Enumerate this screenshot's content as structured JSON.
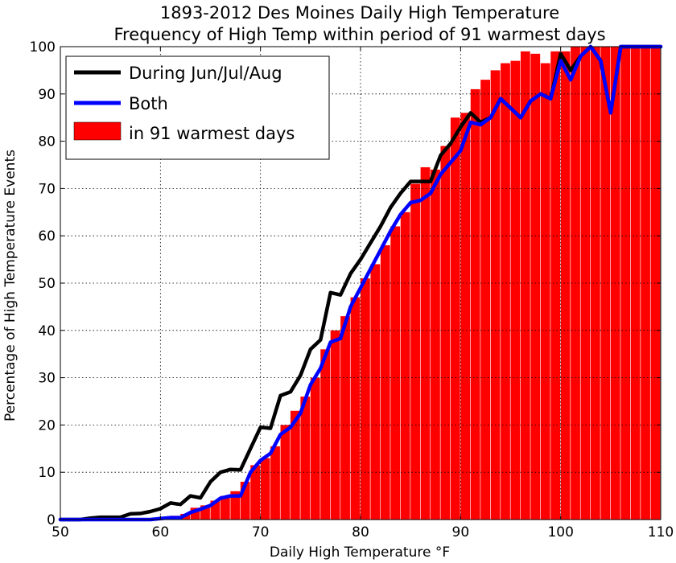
{
  "chart_data": {
    "type": "bar",
    "title": "1893-2012 Des Moines Daily High Temperature",
    "subtitle": "Frequency of High Temp within period of 91 warmest days",
    "xlabel": "Daily High Temperature °F",
    "ylabel": "Percentage of High Temperature Events",
    "xlim": [
      50,
      110
    ],
    "ylim": [
      0,
      100
    ],
    "xticks": [
      50,
      60,
      70,
      80,
      90,
      100,
      110
    ],
    "yticks": [
      0,
      10,
      20,
      30,
      40,
      50,
      60,
      70,
      80,
      90,
      100
    ],
    "grid": true,
    "legend_position": "top-left",
    "legend": [
      {
        "label": "During Jun/Jul/Aug",
        "kind": "line",
        "color": "#000000"
      },
      {
        "label": "Both",
        "kind": "line",
        "color": "#0000ff"
      },
      {
        "label": "in 91 warmest days",
        "kind": "bar",
        "color": "#ff0000"
      }
    ],
    "bars": {
      "name": "in 91 warmest days",
      "color": "#ff0000",
      "x": [
        50,
        51,
        52,
        53,
        54,
        55,
        56,
        57,
        58,
        59,
        60,
        61,
        62,
        63,
        64,
        65,
        66,
        67,
        68,
        69,
        70,
        71,
        72,
        73,
        74,
        75,
        76,
        77,
        78,
        79,
        80,
        81,
        82,
        83,
        84,
        85,
        86,
        87,
        88,
        89,
        90,
        91,
        92,
        93,
        94,
        95,
        96,
        97,
        98,
        99,
        100,
        101,
        102,
        103,
        104,
        105,
        106,
        107,
        108,
        109
      ],
      "values": [
        0,
        0,
        0,
        0,
        0,
        0,
        0,
        0,
        0,
        0,
        0.5,
        0.8,
        1.2,
        2.5,
        3,
        4,
        5,
        6,
        8,
        11.5,
        13,
        15.5,
        20,
        23,
        26,
        30,
        36,
        40,
        43,
        47,
        51,
        54,
        58,
        62,
        65,
        71,
        74.5,
        74,
        79,
        85,
        86,
        91,
        93,
        95,
        96.5,
        97,
        99,
        98.5,
        96.5,
        99,
        99,
        100,
        100,
        100,
        100,
        100,
        100,
        100,
        100,
        100
      ]
    },
    "series": [
      {
        "name": "During Jun/Jul/Aug",
        "color": "#000000",
        "x": [
          50,
          51,
          52,
          53,
          54,
          55,
          56,
          57,
          58,
          59,
          60,
          61,
          62,
          63,
          64,
          65,
          66,
          67,
          68,
          69,
          70,
          71,
          72,
          73,
          74,
          75,
          76,
          77,
          78,
          79,
          80,
          81,
          82,
          83,
          84,
          85,
          86,
          87,
          88,
          89,
          90,
          91,
          92,
          93,
          94,
          95,
          96,
          97,
          98,
          99,
          100,
          101,
          102,
          103,
          104,
          105,
          106,
          107,
          108,
          109,
          110
        ],
        "values": [
          0,
          0,
          0,
          0.3,
          0.5,
          0.5,
          0.5,
          1.2,
          1.3,
          1.7,
          2.3,
          3.5,
          3.2,
          5,
          4.6,
          8,
          10,
          10.6,
          10.5,
          15,
          19.5,
          19.3,
          26.2,
          27,
          30.5,
          36,
          38,
          48,
          47.5,
          52,
          55,
          58.5,
          62,
          66,
          69,
          71.5,
          71.5,
          71.5,
          77,
          79.5,
          83,
          86,
          84,
          85,
          89,
          87,
          85,
          88.5,
          90,
          89,
          98.5,
          95,
          98,
          100,
          97,
          86,
          100,
          100,
          100,
          100,
          100
        ]
      },
      {
        "name": "Both",
        "color": "#0000ff",
        "x": [
          50,
          51,
          52,
          53,
          54,
          55,
          56,
          57,
          58,
          59,
          60,
          61,
          62,
          63,
          64,
          65,
          66,
          67,
          68,
          69,
          70,
          71,
          72,
          73,
          74,
          75,
          76,
          77,
          78,
          79,
          80,
          81,
          82,
          83,
          84,
          85,
          86,
          87,
          88,
          89,
          90,
          91,
          92,
          93,
          94,
          95,
          96,
          97,
          98,
          99,
          100,
          101,
          102,
          103,
          104,
          105,
          106,
          107,
          108,
          109,
          110
        ],
        "values": [
          0,
          0,
          0,
          0,
          0,
          0,
          0,
          0,
          0,
          0,
          0.2,
          0.4,
          0.4,
          1.5,
          2.2,
          3,
          4.5,
          5,
          5,
          10,
          12.5,
          14,
          18,
          19.5,
          22.5,
          28.5,
          32,
          37.5,
          38.3,
          45,
          49,
          53,
          57,
          61,
          64.5,
          67,
          67.5,
          69,
          73,
          75.5,
          78,
          84,
          83.5,
          85,
          89,
          87,
          85,
          88.5,
          90,
          89,
          97,
          93,
          98,
          100,
          97,
          86,
          100,
          100,
          100,
          100,
          100
        ]
      }
    ]
  }
}
